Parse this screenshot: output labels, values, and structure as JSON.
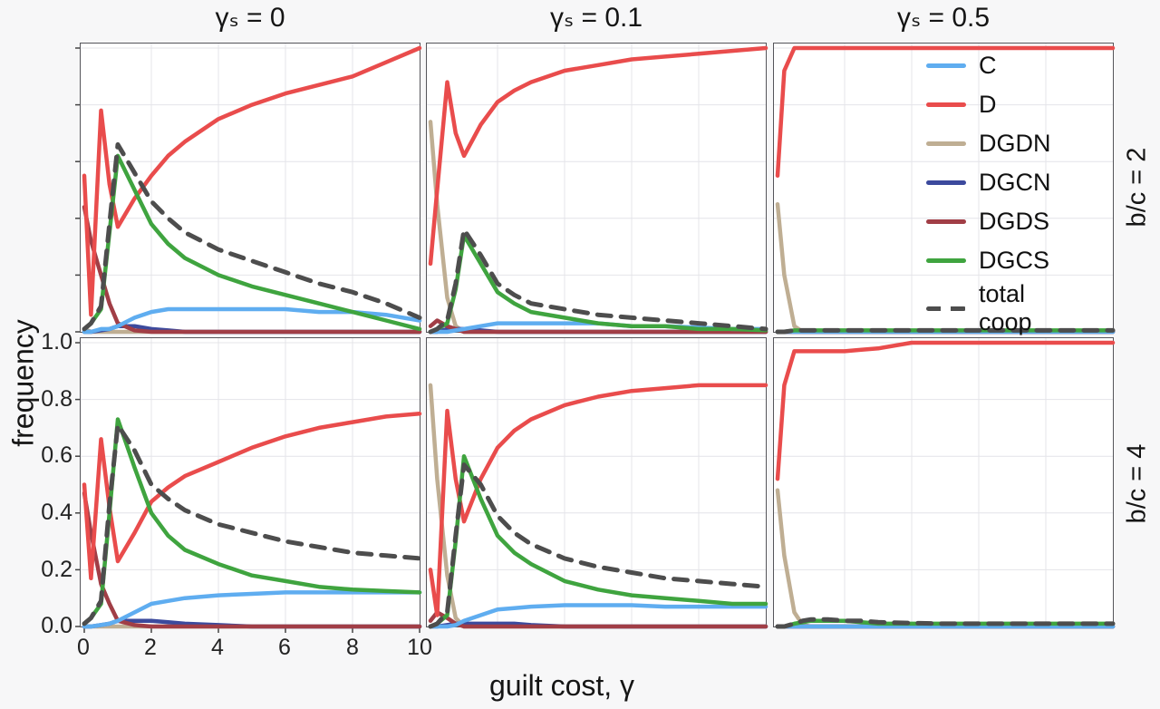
{
  "chart_data": {
    "type": "line",
    "title": "",
    "x_label": "guilt cost, γ",
    "y_label": "frequency",
    "col_titles": [
      "γₛ = 0",
      "γₛ = 0.1",
      "γₛ = 0.5"
    ],
    "row_titles": [
      "b/c = 2",
      "b/c = 4"
    ],
    "x_tick_labels": [
      "0",
      "2",
      "4",
      "6",
      "8",
      "10"
    ],
    "y_tick_labels": [
      "1.0",
      "0.8",
      "0.6",
      "0.4",
      "0.2",
      "0.0"
    ],
    "xlim": [
      0,
      10
    ],
    "ylim": [
      0,
      1
    ],
    "grid": true,
    "legend_position": "top-right-panel",
    "legend": [
      {
        "key": "C",
        "label": "C"
      },
      {
        "key": "D",
        "label": "D"
      },
      {
        "key": "DGDN",
        "label": "DGDN"
      },
      {
        "key": "DGCN",
        "label": "DGCN"
      },
      {
        "key": "DGDS",
        "label": "DGDS"
      },
      {
        "key": "DGCS",
        "label": "DGCS"
      },
      {
        "key": "total_coop",
        "label": "total coop"
      }
    ],
    "colors": {
      "C": "#5fadf0",
      "D": "#e94c4c",
      "DGDN": "#bfae93",
      "DGCN": "#3c4a9d",
      "DGDS": "#a13e46",
      "DGCS": "#3fa43f",
      "total_coop": "#4d4d4d",
      "grid": "#e4e4e9",
      "frame": "#55555a",
      "background": "#f7f7f8",
      "panel_background": "#ffffff",
      "text": "#151515"
    },
    "x": [
      0,
      0.2,
      0.5,
      0.75,
      1,
      1.5,
      2,
      2.5,
      3,
      4,
      5,
      6,
      7,
      8,
      9,
      10
    ],
    "panels": [
      {
        "id": "bc2-gs0",
        "row_label": "b/c = 2",
        "col_label": "γₛ = 0",
        "series": {
          "C": [
            0,
            0,
            0.01,
            0.01,
            0.02,
            0.05,
            0.07,
            0.08,
            0.08,
            0.08,
            0.08,
            0.08,
            0.07,
            0.07,
            0.06,
            0.04
          ],
          "D": [
            0.55,
            0.06,
            0.78,
            0.52,
            0.37,
            0.47,
            0.55,
            0.62,
            0.67,
            0.75,
            0.8,
            0.84,
            0.87,
            0.9,
            0.95,
            1.0
          ],
          "DGDN": [
            0.01,
            0,
            0,
            0,
            0,
            0,
            0,
            0,
            0,
            0,
            0,
            0,
            0,
            0,
            0,
            0
          ],
          "DGCN": [
            0,
            0,
            0.005,
            0.01,
            0.02,
            0.02,
            0.01,
            0.005,
            0,
            0,
            0,
            0,
            0,
            0,
            0,
            0
          ],
          "DGDS": [
            0.44,
            0.32,
            0.2,
            0.1,
            0.03,
            0.005,
            0,
            0,
            0,
            0,
            0,
            0,
            0,
            0,
            0,
            0
          ],
          "DGCS": [
            0.01,
            0.03,
            0.08,
            0.35,
            0.62,
            0.5,
            0.38,
            0.31,
            0.26,
            0.2,
            0.16,
            0.13,
            0.1,
            0.07,
            0.04,
            0.01
          ],
          "total_coop": [
            0.01,
            0.03,
            0.09,
            0.38,
            0.66,
            0.56,
            0.46,
            0.4,
            0.35,
            0.29,
            0.25,
            0.21,
            0.17,
            0.14,
            0.1,
            0.05
          ]
        }
      },
      {
        "id": "bc2-gs0.1",
        "row_label": "b/c = 2",
        "col_label": "γₛ = 0.1",
        "series": {
          "C": [
            0,
            0,
            0,
            0.005,
            0.01,
            0.02,
            0.03,
            0.03,
            0.03,
            0.03,
            0.03,
            0.02,
            0.02,
            0.015,
            0.01,
            0.01
          ],
          "D": [
            0.24,
            0.5,
            0.88,
            0.7,
            0.62,
            0.73,
            0.81,
            0.85,
            0.88,
            0.92,
            0.94,
            0.96,
            0.97,
            0.98,
            0.99,
            1.0
          ],
          "DGDN": [
            0.74,
            0.45,
            0.12,
            0.02,
            0,
            0,
            0,
            0,
            0,
            0,
            0,
            0,
            0,
            0,
            0,
            0
          ],
          "DGCN": [
            0,
            0,
            0.01,
            0.01,
            0.01,
            0.005,
            0,
            0,
            0,
            0,
            0,
            0,
            0,
            0,
            0,
            0
          ],
          "DGDS": [
            0.02,
            0.04,
            0.02,
            0.01,
            0,
            0,
            0,
            0,
            0,
            0,
            0,
            0,
            0,
            0,
            0,
            0
          ],
          "DGCS": [
            0,
            0.01,
            0.03,
            0.15,
            0.34,
            0.24,
            0.14,
            0.1,
            0.07,
            0.05,
            0.03,
            0.02,
            0.02,
            0.01,
            0.01,
            0.005
          ],
          "total_coop": [
            0,
            0.01,
            0.04,
            0.17,
            0.36,
            0.27,
            0.17,
            0.13,
            0.1,
            0.08,
            0.06,
            0.05,
            0.04,
            0.03,
            0.02,
            0.01
          ]
        }
      },
      {
        "id": "bc2-gs0.5",
        "row_label": "b/c = 2",
        "col_label": "γₛ = 0.5",
        "series": {
          "C": [
            0,
            0,
            0,
            0,
            0,
            0,
            0,
            0,
            0,
            0,
            0,
            0,
            0,
            0,
            0,
            0
          ],
          "D": [
            0.55,
            0.92,
            1.0,
            1.0,
            1.0,
            1.0,
            1.0,
            1.0,
            1.0,
            1.0,
            1.0,
            1.0,
            1.0,
            1.0,
            1.0,
            1.0
          ],
          "DGDN": [
            0.45,
            0.2,
            0.02,
            0,
            0,
            0,
            0,
            0,
            0,
            0,
            0,
            0,
            0,
            0,
            0,
            0
          ],
          "DGCN": [
            0,
            0,
            0,
            0,
            0,
            0,
            0,
            0,
            0,
            0,
            0,
            0,
            0,
            0,
            0,
            0
          ],
          "DGDS": [
            0,
            0,
            0,
            0,
            0,
            0,
            0,
            0,
            0,
            0,
            0,
            0,
            0,
            0,
            0,
            0
          ],
          "DGCS": [
            0,
            0,
            0.005,
            0.005,
            0.005,
            0.005,
            0.005,
            0.005,
            0.005,
            0.005,
            0.005,
            0.005,
            0.005,
            0.005,
            0.005,
            0.005
          ],
          "total_coop": [
            0,
            0,
            0.005,
            0.005,
            0.005,
            0.005,
            0.005,
            0.005,
            0.005,
            0.005,
            0.005,
            0.005,
            0.005,
            0.005,
            0.005,
            0.005
          ]
        }
      },
      {
        "id": "bc4-gs0",
        "row_label": "b/c = 4",
        "col_label": "γₛ = 0",
        "series": {
          "C": [
            0,
            0,
            0.005,
            0.01,
            0.02,
            0.05,
            0.08,
            0.09,
            0.1,
            0.11,
            0.115,
            0.12,
            0.12,
            0.12,
            0.12,
            0.12
          ],
          "D": [
            0.5,
            0.17,
            0.66,
            0.42,
            0.23,
            0.33,
            0.44,
            0.49,
            0.53,
            0.58,
            0.63,
            0.67,
            0.7,
            0.72,
            0.74,
            0.75
          ],
          "DGDN": [
            0,
            0,
            0,
            0,
            0,
            0,
            0,
            0,
            0,
            0,
            0,
            0,
            0,
            0,
            0,
            0
          ],
          "DGCN": [
            0,
            0,
            0.005,
            0.01,
            0.02,
            0.02,
            0.02,
            0.015,
            0.01,
            0.005,
            0,
            0,
            0,
            0,
            0,
            0
          ],
          "DGDS": [
            0.47,
            0.33,
            0.15,
            0.08,
            0.02,
            0.005,
            0,
            0,
            0,
            0,
            0,
            0,
            0,
            0,
            0,
            0
          ],
          "DGCS": [
            0.01,
            0.03,
            0.08,
            0.4,
            0.73,
            0.56,
            0.4,
            0.32,
            0.27,
            0.22,
            0.18,
            0.16,
            0.14,
            0.13,
            0.125,
            0.12
          ],
          "total_coop": [
            0.01,
            0.03,
            0.09,
            0.43,
            0.71,
            0.62,
            0.5,
            0.45,
            0.41,
            0.36,
            0.33,
            0.3,
            0.28,
            0.26,
            0.25,
            0.24
          ]
        }
      },
      {
        "id": "bc4-gs0.1",
        "row_label": "b/c = 4",
        "col_label": "γₛ = 0.1",
        "series": {
          "C": [
            0,
            0,
            0,
            0.005,
            0.02,
            0.04,
            0.06,
            0.065,
            0.07,
            0.075,
            0.075,
            0.075,
            0.07,
            0.07,
            0.07,
            0.07
          ],
          "D": [
            0.2,
            0.04,
            0.76,
            0.52,
            0.37,
            0.52,
            0.63,
            0.69,
            0.73,
            0.78,
            0.81,
            0.83,
            0.84,
            0.85,
            0.85,
            0.85
          ],
          "DGDN": [
            0.85,
            0.52,
            0.18,
            0.03,
            0,
            0,
            0,
            0,
            0,
            0,
            0,
            0,
            0,
            0,
            0,
            0
          ],
          "DGCN": [
            0,
            0,
            0.005,
            0.01,
            0.01,
            0.01,
            0.01,
            0.01,
            0.005,
            0,
            0,
            0,
            0,
            0,
            0,
            0
          ],
          "DGDS": [
            0.02,
            0.05,
            0.03,
            0.01,
            0,
            0,
            0,
            0,
            0,
            0,
            0,
            0,
            0,
            0,
            0,
            0
          ],
          "DGCS": [
            0,
            0.01,
            0.04,
            0.3,
            0.6,
            0.45,
            0.32,
            0.26,
            0.22,
            0.16,
            0.13,
            0.11,
            0.1,
            0.09,
            0.08,
            0.08
          ],
          "total_coop": [
            0,
            0.01,
            0.05,
            0.32,
            0.57,
            0.5,
            0.39,
            0.33,
            0.29,
            0.24,
            0.21,
            0.19,
            0.17,
            0.16,
            0.15,
            0.14
          ]
        }
      },
      {
        "id": "bc4-gs0.5",
        "row_label": "b/c = 4",
        "col_label": "γₛ = 0.5",
        "series": {
          "C": [
            0,
            0,
            0,
            0,
            0,
            0,
            0,
            0,
            0,
            0,
            0,
            0,
            0,
            0,
            0,
            0
          ],
          "D": [
            0.52,
            0.85,
            0.97,
            0.97,
            0.97,
            0.97,
            0.97,
            0.975,
            0.98,
            1.0,
            1.0,
            1.0,
            1.0,
            1.0,
            1.0,
            1.0
          ],
          "DGDN": [
            0.48,
            0.25,
            0.05,
            0.005,
            0,
            0,
            0,
            0,
            0,
            0,
            0,
            0,
            0,
            0,
            0,
            0
          ],
          "DGCN": [
            0,
            0,
            0,
            0,
            0,
            0,
            0,
            0,
            0,
            0,
            0,
            0,
            0,
            0,
            0,
            0
          ],
          "DGDS": [
            0,
            0,
            0,
            0,
            0,
            0,
            0,
            0,
            0,
            0,
            0,
            0,
            0,
            0,
            0,
            0
          ],
          "DGCS": [
            0,
            0,
            0.01,
            0.015,
            0.02,
            0.02,
            0.02,
            0.015,
            0.01,
            0.01,
            0.01,
            0.01,
            0.01,
            0.01,
            0.01,
            0.01
          ],
          "total_coop": [
            0,
            0,
            0.01,
            0.02,
            0.025,
            0.025,
            0.02,
            0.02,
            0.015,
            0.012,
            0.01,
            0.01,
            0.01,
            0.01,
            0.01,
            0.01
          ]
        }
      }
    ]
  }
}
